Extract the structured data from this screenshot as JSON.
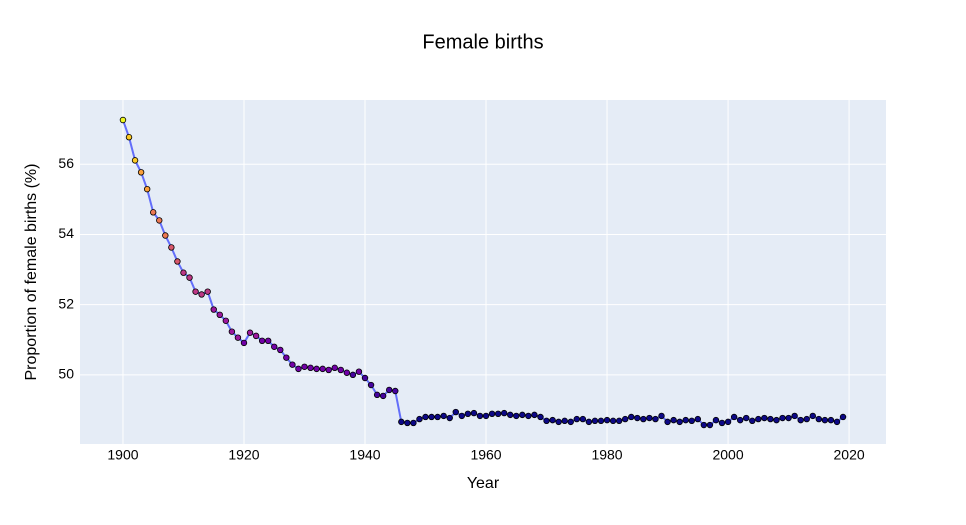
{
  "chart_data": {
    "type": "line",
    "title": "Female births",
    "x_label": "Year",
    "y_label": "Proportion of female births (%)",
    "x": [
      1900,
      1901,
      1902,
      1903,
      1904,
      1905,
      1906,
      1907,
      1908,
      1909,
      1910,
      1911,
      1912,
      1913,
      1914,
      1915,
      1916,
      1917,
      1918,
      1919,
      1920,
      1921,
      1922,
      1923,
      1924,
      1925,
      1926,
      1927,
      1928,
      1929,
      1930,
      1931,
      1932,
      1933,
      1934,
      1935,
      1936,
      1937,
      1938,
      1939,
      1940,
      1941,
      1942,
      1943,
      1944,
      1945,
      1946,
      1947,
      1948,
      1949,
      1950,
      1951,
      1952,
      1953,
      1954,
      1955,
      1956,
      1957,
      1958,
      1959,
      1960,
      1961,
      1962,
      1963,
      1964,
      1965,
      1966,
      1967,
      1968,
      1969,
      1970,
      1971,
      1972,
      1973,
      1974,
      1975,
      1976,
      1977,
      1978,
      1979,
      1980,
      1981,
      1982,
      1983,
      1984,
      1985,
      1986,
      1987,
      1988,
      1989,
      1990,
      1991,
      1992,
      1993,
      1994,
      1995,
      1996,
      1997,
      1998,
      1999,
      2000,
      2001,
      2002,
      2003,
      2004,
      2005,
      2006,
      2007,
      2008,
      2009,
      2010,
      2011,
      2012,
      2013,
      2014,
      2015,
      2016,
      2017,
      2018,
      2019
    ],
    "values": [
      57.26,
      56.77,
      56.11,
      55.77,
      55.29,
      54.63,
      54.4,
      53.97,
      53.63,
      53.23,
      52.91,
      52.77,
      52.37,
      52.29,
      52.37,
      51.86,
      51.71,
      51.54,
      51.23,
      51.06,
      50.91,
      51.2,
      51.11,
      50.97,
      50.97,
      50.8,
      50.71,
      50.49,
      50.29,
      50.17,
      50.23,
      50.2,
      50.17,
      50.17,
      50.14,
      50.2,
      50.14,
      50.06,
      50.0,
      50.09,
      49.91,
      49.71,
      49.43,
      49.4,
      49.57,
      49.54,
      48.66,
      48.63,
      48.63,
      48.74,
      48.8,
      48.8,
      48.8,
      48.83,
      48.77,
      48.94,
      48.83,
      48.89,
      48.91,
      48.83,
      48.83,
      48.89,
      48.89,
      48.91,
      48.86,
      48.83,
      48.86,
      48.83,
      48.86,
      48.8,
      48.69,
      48.71,
      48.66,
      48.69,
      48.66,
      48.74,
      48.74,
      48.66,
      48.69,
      48.69,
      48.71,
      48.69,
      48.69,
      48.74,
      48.8,
      48.77,
      48.74,
      48.77,
      48.74,
      48.83,
      48.66,
      48.71,
      48.66,
      48.71,
      48.69,
      48.74,
      48.57,
      48.57,
      48.71,
      48.63,
      48.66,
      48.8,
      48.71,
      48.77,
      48.69,
      48.74,
      48.77,
      48.74,
      48.71,
      48.77,
      48.77,
      48.83,
      48.71,
      48.74,
      48.83,
      48.74,
      48.71,
      48.71,
      48.66,
      48.8
    ],
    "color": "#636efa",
    "marker_colorscale": [
      "#0d0887",
      "#46039f",
      "#7201a8",
      "#9c179e",
      "#bd3786",
      "#d8576b",
      "#ed7953",
      "#fb9f3a",
      "#fdca26",
      "#f0f921"
    ],
    "xlim": [
      1892.9,
      2026.1
    ],
    "ylim": [
      48.03,
      57.83
    ],
    "xticks": [
      1900,
      1920,
      1940,
      1960,
      1980,
      2000,
      2020
    ],
    "yticks": [
      50,
      52,
      54,
      56
    ],
    "grid": true
  }
}
